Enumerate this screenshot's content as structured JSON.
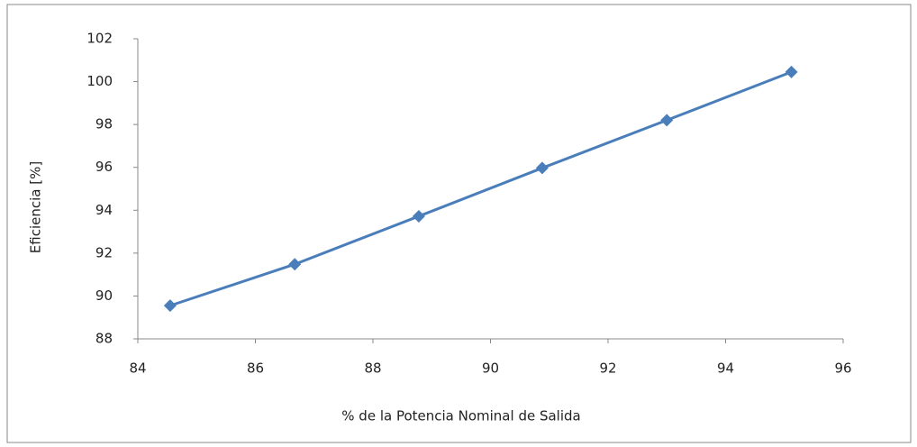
{
  "chart_data": {
    "type": "scatter-line",
    "x_label": "% de la Potencia Nominal de Salida",
    "y_label": "Eficiencia [%]",
    "x": [
      84.55,
      86.67,
      88.78,
      90.88,
      93.0,
      95.12
    ],
    "series": [
      {
        "color": "#4a7ebb",
        "values": [
          89.55,
          91.48,
          93.72,
          95.97,
          98.2,
          100.45
        ]
      }
    ],
    "xlim": [
      84,
      96
    ],
    "xticks": [
      84,
      86,
      88,
      90,
      92,
      94,
      96
    ],
    "ylim": [
      88,
      102
    ],
    "yticks": [
      88,
      90,
      92,
      94,
      96,
      98,
      100,
      102
    ],
    "grid": false
  }
}
